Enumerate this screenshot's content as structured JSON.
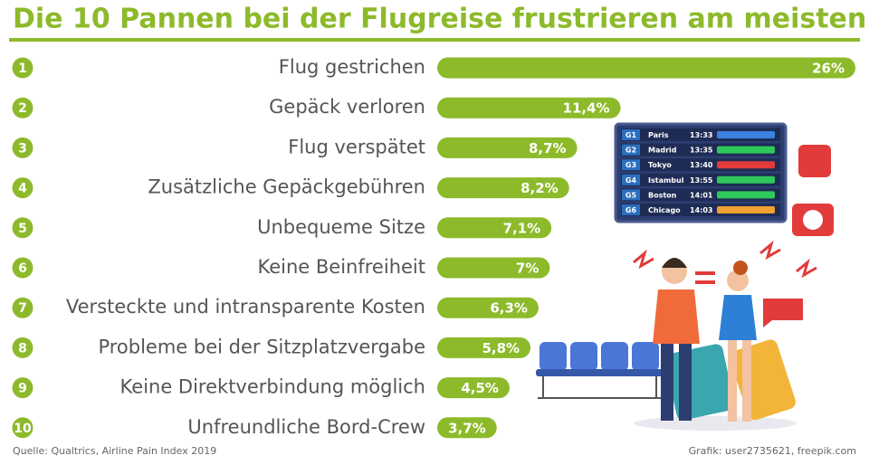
{
  "chart_data": {
    "type": "bar",
    "orientation": "horizontal",
    "title": "Die 10 Pannen bei der Flugreise frustrieren am meisten",
    "ranks": [
      "1",
      "2",
      "3",
      "4",
      "5",
      "6",
      "7",
      "8",
      "9",
      "10"
    ],
    "categories": [
      "Flug gestrichen",
      "Gepäck verloren",
      "Flug verspätet",
      "Zusätzliche Gepäckgebühren",
      "Unbequeme Sitze",
      "Keine Beinfreiheit",
      "Versteckte und intransparente Kosten",
      "Probleme bei der Sitzplatzvergabe",
      "Keine Direktverbindung möglich",
      "Unfreundliche Bord-Crew"
    ],
    "values": [
      26,
      11.4,
      8.7,
      8.2,
      7.1,
      7,
      6.3,
      5.8,
      4.5,
      3.7
    ],
    "value_labels": [
      "26%",
      "11,4%",
      "8,7%",
      "8,2%",
      "7,1%",
      "7%",
      "6,3%",
      "5,8%",
      "4,5%",
      "3,7%"
    ],
    "color": "#8dba2b",
    "source": "Quelle: Qualtrics, Airline Pain Index 2019",
    "credit": "Grafik: user2735621, freepik.com"
  },
  "board": {
    "rows": [
      {
        "gate": "G1",
        "city": "Paris",
        "time": "13:33",
        "color": "#3b82e0"
      },
      {
        "gate": "G2",
        "city": "Madrid",
        "time": "13:35",
        "color": "#2ec95a"
      },
      {
        "gate": "G3",
        "city": "Tokyo",
        "time": "13:40",
        "color": "#e23b3b"
      },
      {
        "gate": "G4",
        "city": "Istambul",
        "time": "13:55",
        "color": "#2ec95a"
      },
      {
        "gate": "G5",
        "city": "Boston",
        "time": "14:01",
        "color": "#2ec95a"
      },
      {
        "gate": "G6",
        "city": "Chicago",
        "time": "14:03",
        "color": "#f0a030"
      }
    ]
  }
}
